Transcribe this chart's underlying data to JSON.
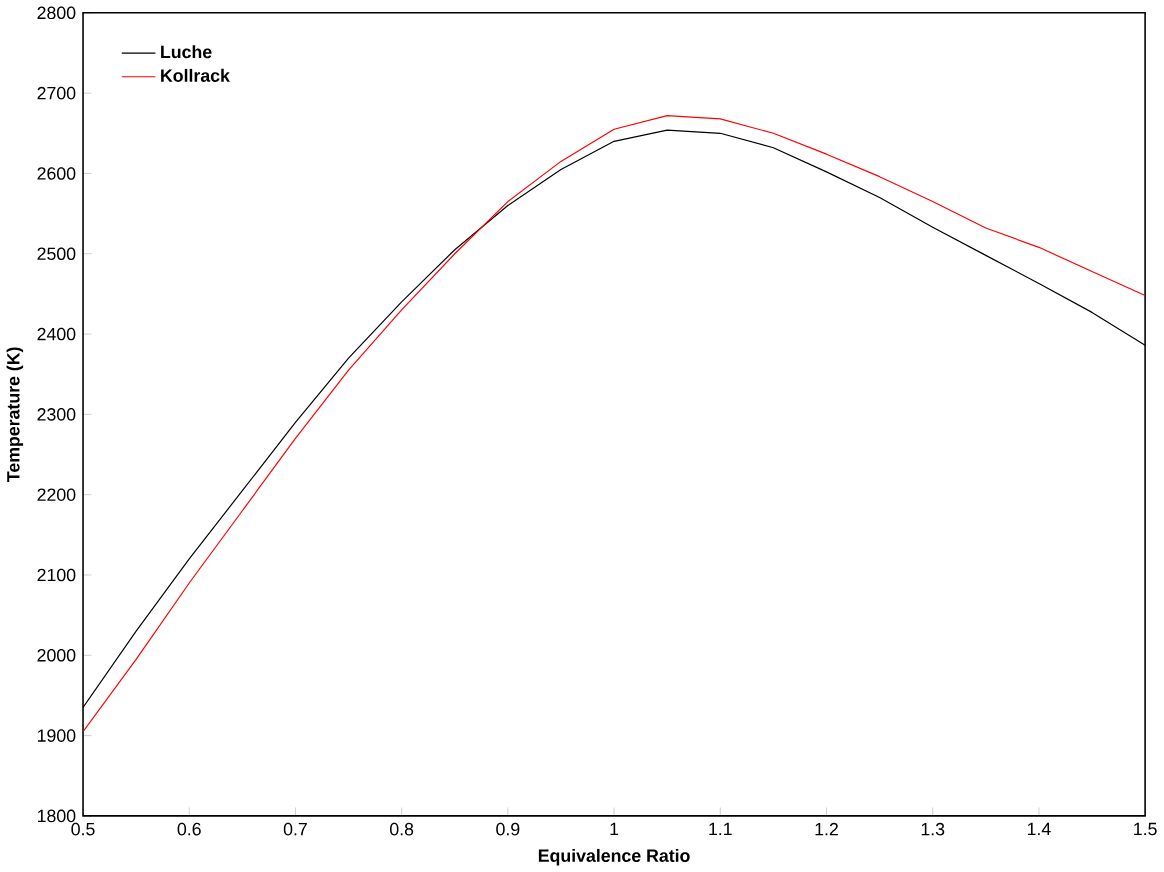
{
  "chart_data": {
    "type": "line",
    "xlabel": "Equivalence Ratio",
    "ylabel": "Temperature (K)",
    "x": [
      0.5,
      0.55,
      0.6,
      0.65,
      0.7,
      0.75,
      0.8,
      0.85,
      0.9,
      0.95,
      1.0,
      1.05,
      1.1,
      1.15,
      1.2,
      1.25,
      1.3,
      1.35,
      1.4,
      1.45,
      1.5
    ],
    "series": [
      {
        "name": "Luche",
        "color": "#000000",
        "values": [
          1935,
          2030,
          2120,
          2205,
          2290,
          2370,
          2440,
          2505,
          2560,
          2605,
          2640,
          2654,
          2650,
          2632,
          2602,
          2570,
          2533,
          2498,
          2463,
          2427,
          2386
        ]
      },
      {
        "name": "Kollrack",
        "color": "#ff0000",
        "values": [
          1905,
          1995,
          2090,
          2180,
          2270,
          2355,
          2430,
          2500,
          2565,
          2615,
          2655,
          2672,
          2668,
          2650,
          2624,
          2596,
          2565,
          2532,
          2508,
          2478,
          2448
        ]
      }
    ],
    "xlim": [
      0.5,
      1.5
    ],
    "xticks": [
      0.5,
      0.6,
      0.7,
      0.8,
      0.9,
      1,
      1.1,
      1.2,
      1.3,
      1.4,
      1.5
    ],
    "ylim": [
      1800,
      2800
    ],
    "yticks": [
      1800,
      1900,
      2000,
      2100,
      2200,
      2300,
      2400,
      2500,
      2600,
      2700,
      2800
    ],
    "legend": "top left",
    "grid": false,
    "marker": "none",
    "line_style": "solid"
  }
}
